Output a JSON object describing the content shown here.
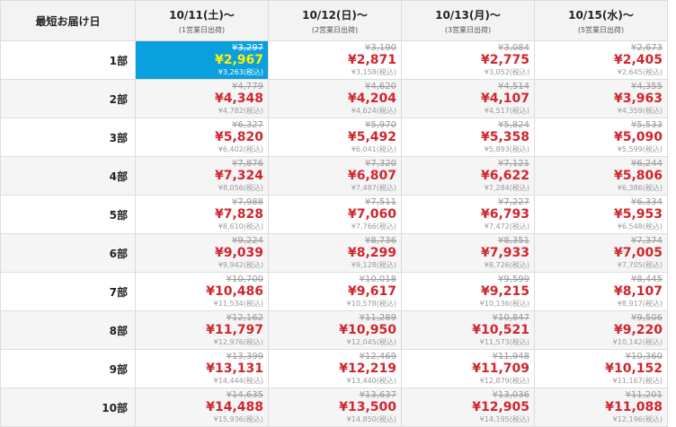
{
  "header": {
    "title": "最短お届け日",
    "columns": [
      {
        "date": "10/11(土)～",
        "note": "(1営業日出荷)"
      },
      {
        "date": "10/12(日)～",
        "note": "(2営業日出荷)"
      },
      {
        "date": "10/13(月)～",
        "note": "(3営業日出荷)"
      },
      {
        "date": "10/15(水)～",
        "note": "(5営業日出荷)"
      }
    ]
  },
  "rows": [
    {
      "label": "1部",
      "cells": [
        {
          "list_price": "¥3,297",
          "price": "¥2,967",
          "tax_included": "¥3,263(税込)"
        },
        {
          "list_price": "¥3,190",
          "price": "¥2,871",
          "tax_included": "¥3,158(税込)"
        },
        {
          "list_price": "¥3,084",
          "price": "¥2,775",
          "tax_included": "¥3,052(税込)"
        },
        {
          "list_price": "¥2,673",
          "price": "¥2,405",
          "tax_included": "¥2,645(税込)"
        }
      ]
    },
    {
      "label": "2部",
      "cells": [
        {
          "list_price": "¥4,779",
          "price": "¥4,348",
          "tax_included": "¥4,782(税込)"
        },
        {
          "list_price": "¥4,620",
          "price": "¥4,204",
          "tax_included": "¥4,624(税込)"
        },
        {
          "list_price": "¥4,514",
          "price": "¥4,107",
          "tax_included": "¥4,517(税込)"
        },
        {
          "list_price": "¥4,355",
          "price": "¥3,963",
          "tax_included": "¥4,359(税込)"
        }
      ]
    },
    {
      "label": "3部",
      "cells": [
        {
          "list_price": "¥6,327",
          "price": "¥5,820",
          "tax_included": "¥6,402(税込)"
        },
        {
          "list_price": "¥5,970",
          "price": "¥5,492",
          "tax_included": "¥6,041(税込)"
        },
        {
          "list_price": "¥5,824",
          "price": "¥5,358",
          "tax_included": "¥5,893(税込)"
        },
        {
          "list_price": "¥5,533",
          "price": "¥5,090",
          "tax_included": "¥5,599(税込)"
        }
      ]
    },
    {
      "label": "4部",
      "cells": [
        {
          "list_price": "¥7,876",
          "price": "¥7,324",
          "tax_included": "¥8,056(税込)"
        },
        {
          "list_price": "¥7,320",
          "price": "¥6,807",
          "tax_included": "¥7,487(税込)"
        },
        {
          "list_price": "¥7,121",
          "price": "¥6,622",
          "tax_included": "¥7,284(税込)"
        },
        {
          "list_price": "¥6,244",
          "price": "¥5,806",
          "tax_included": "¥6,386(税込)"
        }
      ]
    },
    {
      "label": "5部",
      "cells": [
        {
          "list_price": "¥7,988",
          "price": "¥7,828",
          "tax_included": "¥8,610(税込)"
        },
        {
          "list_price": "¥7,511",
          "price": "¥7,060",
          "tax_included": "¥7,766(税込)"
        },
        {
          "list_price": "¥7,227",
          "price": "¥6,793",
          "tax_included": "¥7,472(税込)"
        },
        {
          "list_price": "¥6,334",
          "price": "¥5,953",
          "tax_included": "¥6,548(税込)"
        }
      ]
    },
    {
      "label": "6部",
      "cells": [
        {
          "list_price": "¥9,224",
          "price": "¥9,039",
          "tax_included": "¥9,942(税込)"
        },
        {
          "list_price": "¥8,736",
          "price": "¥8,299",
          "tax_included": "¥9,128(税込)"
        },
        {
          "list_price": "¥8,351",
          "price": "¥7,933",
          "tax_included": "¥8,726(税込)"
        },
        {
          "list_price": "¥7,374",
          "price": "¥7,005",
          "tax_included": "¥7,705(税込)"
        }
      ]
    },
    {
      "label": "7部",
      "cells": [
        {
          "list_price": "¥10,700",
          "price": "¥10,486",
          "tax_included": "¥11,534(税込)"
        },
        {
          "list_price": "¥10,018",
          "price": "¥9,617",
          "tax_included": "¥10,578(税込)"
        },
        {
          "list_price": "¥9,599",
          "price": "¥9,215",
          "tax_included": "¥10,136(税込)"
        },
        {
          "list_price": "¥8,445",
          "price": "¥8,107",
          "tax_included": "¥8,917(税込)"
        }
      ]
    },
    {
      "label": "8部",
      "cells": [
        {
          "list_price": "¥12,162",
          "price": "¥11,797",
          "tax_included": "¥12,976(税込)"
        },
        {
          "list_price": "¥11,289",
          "price": "¥10,950",
          "tax_included": "¥12,045(税込)"
        },
        {
          "list_price": "¥10,847",
          "price": "¥10,521",
          "tax_included": "¥11,573(税込)"
        },
        {
          "list_price": "¥9,506",
          "price": "¥9,220",
          "tax_included": "¥10,142(税込)"
        }
      ]
    },
    {
      "label": "9部",
      "cells": [
        {
          "list_price": "¥13,399",
          "price": "¥13,131",
          "tax_included": "¥14,444(税込)"
        },
        {
          "list_price": "¥12,469",
          "price": "¥12,219",
          "tax_included": "¥13,440(税込)"
        },
        {
          "list_price": "¥11,948",
          "price": "¥11,709",
          "tax_included": "¥12,879(税込)"
        },
        {
          "list_price": "¥10,360",
          "price": "¥10,152",
          "tax_included": "¥11,167(税込)"
        }
      ]
    },
    {
      "label": "10部",
      "cells": [
        {
          "list_price": "¥14,635",
          "price": "¥14,488",
          "tax_included": "¥15,936(税込)"
        },
        {
          "list_price": "¥13,637",
          "price": "¥13,500",
          "tax_included": "¥14,850(税込)"
        },
        {
          "list_price": "¥13,036",
          "price": "¥12,905",
          "tax_included": "¥14,195(税込)"
        },
        {
          "list_price": "¥11,201",
          "price": "¥11,088",
          "tax_included": "¥12,196(税込)"
        }
      ]
    }
  ]
}
